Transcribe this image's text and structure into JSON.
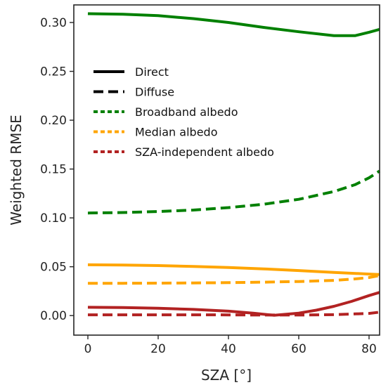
{
  "chart_data": {
    "type": "line",
    "title": "",
    "xlabel": "SZA [°]",
    "ylabel": "Weighted RMSE",
    "xlim": [
      -4,
      83
    ],
    "ylim": [
      -0.02,
      0.318
    ],
    "xticks": [
      0,
      20,
      40,
      60,
      80
    ],
    "yticks": [
      0.0,
      0.05,
      0.1,
      0.15,
      0.2,
      0.25,
      0.3
    ],
    "ytick_labels": [
      "0.00",
      "0.05",
      "0.10",
      "0.15",
      "0.20",
      "0.25",
      "0.30"
    ],
    "grid": false,
    "legend": {
      "placement": "upper-left",
      "entries": [
        {
          "label": "Direct",
          "color": "#000000",
          "style": "solid"
        },
        {
          "label": "Diffuse",
          "color": "#000000",
          "style": "dashed"
        },
        {
          "label": "Broadband albedo",
          "color": "#008000",
          "style": "dashed-short"
        },
        {
          "label": "Median albedo",
          "color": "#FFA500",
          "style": "dashed-short"
        },
        {
          "label": "SZA-independent albedo",
          "color": "#B22222",
          "style": "dashed-short"
        }
      ]
    },
    "series": [
      {
        "method": "Broadband albedo",
        "component": "Direct",
        "color": "#008000",
        "style": "solid",
        "x": [
          0,
          10,
          20,
          30,
          40,
          50,
          60,
          70,
          76,
          80,
          83
        ],
        "y": [
          0.309,
          0.3085,
          0.307,
          0.304,
          0.3,
          0.295,
          0.2905,
          0.2865,
          0.2865,
          0.29,
          0.293
        ]
      },
      {
        "method": "Broadband albedo",
        "component": "Diffuse",
        "color": "#008000",
        "style": "dashed",
        "x": [
          0,
          10,
          20,
          30,
          40,
          50,
          60,
          70,
          76,
          80,
          83
        ],
        "y": [
          0.105,
          0.1055,
          0.1065,
          0.108,
          0.1105,
          0.114,
          0.119,
          0.127,
          0.134,
          0.141,
          0.148
        ]
      },
      {
        "method": "Median albedo",
        "component": "Direct",
        "color": "#FFA500",
        "style": "solid",
        "x": [
          0,
          10,
          20,
          30,
          40,
          50,
          60,
          70,
          80,
          83
        ],
        "y": [
          0.052,
          0.0518,
          0.0512,
          0.0503,
          0.0492,
          0.0478,
          0.0461,
          0.0442,
          0.0425,
          0.042
        ]
      },
      {
        "method": "Median albedo",
        "component": "Diffuse",
        "color": "#FFA500",
        "style": "dashed",
        "x": [
          0,
          10,
          20,
          30,
          40,
          50,
          60,
          70,
          76,
          80,
          83
        ],
        "y": [
          0.033,
          0.0331,
          0.0332,
          0.0334,
          0.0337,
          0.0342,
          0.0349,
          0.036,
          0.0375,
          0.039,
          0.041
        ]
      },
      {
        "method": "SZA-independent albedo",
        "component": "Direct",
        "color": "#B22222",
        "style": "solid",
        "x": [
          0,
          10,
          20,
          30,
          40,
          47,
          53,
          60,
          65,
          70,
          75,
          80,
          83
        ],
        "y": [
          0.0085,
          0.0082,
          0.0075,
          0.0063,
          0.0045,
          0.0025,
          0.0003,
          0.0025,
          0.0055,
          0.0095,
          0.0145,
          0.0205,
          0.0237
        ]
      },
      {
        "method": "SZA-independent albedo",
        "component": "Diffuse",
        "color": "#B22222",
        "style": "dashed",
        "x": [
          0,
          10,
          20,
          30,
          40,
          50,
          60,
          70,
          80,
          83
        ],
        "y": [
          0.0008,
          0.0008,
          0.0008,
          0.0008,
          0.0007,
          0.0006,
          0.0006,
          0.0009,
          0.0022,
          0.0035
        ]
      }
    ]
  }
}
